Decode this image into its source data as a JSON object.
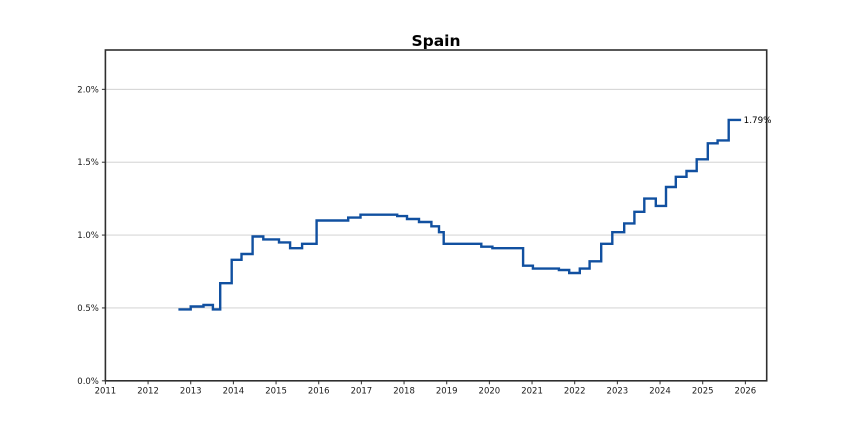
{
  "title": "Spain",
  "chart_data": {
    "type": "line",
    "style": "step-post",
    "title": "Spain",
    "xlabel": "",
    "ylabel": "",
    "grid": "horizontal-only",
    "legend": "none",
    "xlim": [
      2011,
      2026.5
    ],
    "ylim": [
      0,
      2.27
    ],
    "x_ticks": [
      "2011",
      "2012",
      "2013",
      "2014",
      "2015",
      "2016",
      "2017",
      "2018",
      "2019",
      "2020",
      "2021",
      "2022",
      "2023",
      "2024",
      "2025",
      "2026"
    ],
    "y_ticks": [
      {
        "value": 0.0,
        "label": "0.0%"
      },
      {
        "value": 0.5,
        "label": "0.5%"
      },
      {
        "value": 1.0,
        "label": "1.0%"
      },
      {
        "value": 1.5,
        "label": "1.5%"
      },
      {
        "value": 2.0,
        "label": "2.0%"
      }
    ],
    "grid_values": [
      0.5,
      1.0,
      1.5,
      2.0
    ],
    "end_label": "1.79%",
    "colors": {
      "line": "#1150a0",
      "grid": "#cccccc",
      "spine": "#2f2f2f",
      "tick_text": "#1a1a1a"
    },
    "series": [
      {
        "name": "Spain",
        "unit": "%",
        "points": [
          [
            2012.71,
            0.49
          ],
          [
            2013.0,
            0.51
          ],
          [
            2013.3,
            0.52
          ],
          [
            2013.52,
            0.49
          ],
          [
            2013.69,
            0.67
          ],
          [
            2013.96,
            0.83
          ],
          [
            2014.19,
            0.87
          ],
          [
            2014.45,
            0.99
          ],
          [
            2014.7,
            0.97
          ],
          [
            2015.07,
            0.95
          ],
          [
            2015.33,
            0.91
          ],
          [
            2015.61,
            0.94
          ],
          [
            2015.95,
            1.1
          ],
          [
            2016.69,
            1.12
          ],
          [
            2016.98,
            1.14
          ],
          [
            2017.84,
            1.13
          ],
          [
            2018.07,
            1.11
          ],
          [
            2018.35,
            1.09
          ],
          [
            2018.64,
            1.06
          ],
          [
            2018.82,
            1.02
          ],
          [
            2018.93,
            0.94
          ],
          [
            2019.81,
            0.92
          ],
          [
            2020.07,
            0.91
          ],
          [
            2020.79,
            0.79
          ],
          [
            2021.02,
            0.77
          ],
          [
            2021.63,
            0.76
          ],
          [
            2021.87,
            0.74
          ],
          [
            2022.12,
            0.77
          ],
          [
            2022.35,
            0.82
          ],
          [
            2022.62,
            0.94
          ],
          [
            2022.88,
            1.02
          ],
          [
            2023.16,
            1.08
          ],
          [
            2023.4,
            1.16
          ],
          [
            2023.63,
            1.25
          ],
          [
            2023.9,
            1.2
          ],
          [
            2024.14,
            1.33
          ],
          [
            2024.37,
            1.4
          ],
          [
            2024.62,
            1.44
          ],
          [
            2024.86,
            1.52
          ],
          [
            2025.12,
            1.63
          ],
          [
            2025.35,
            1.65
          ],
          [
            2025.61,
            1.79
          ],
          [
            2025.9,
            1.79
          ]
        ]
      }
    ]
  }
}
